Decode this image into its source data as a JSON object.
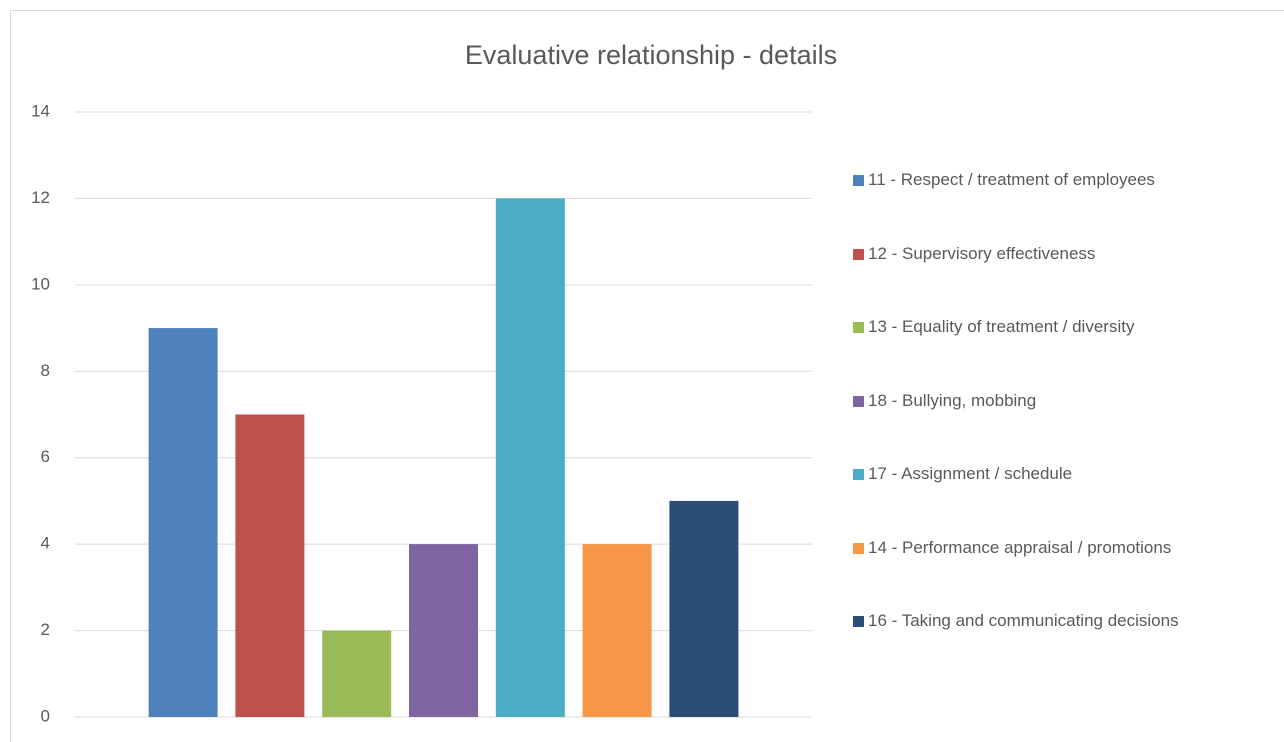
{
  "chart_data": {
    "type": "bar",
    "title": "Evaluative relationship - details",
    "series": [
      {
        "name": "11 - Respect / treatment of employees",
        "color": "#4f81bd",
        "values": [
          9
        ]
      },
      {
        "name": "12 - Supervisory effectiveness",
        "color": "#c0504d",
        "values": [
          7
        ]
      },
      {
        "name": "13 - Equality of treatment / diversity",
        "color": "#9bbb59",
        "values": [
          2
        ]
      },
      {
        "name": "18 - Bullying, mobbing",
        "color": "#8064a2",
        "values": [
          4
        ]
      },
      {
        "name": "17 - Assignment / schedule",
        "color": "#4bacc6",
        "values": [
          12
        ]
      },
      {
        "name": "14 - Performance appraisal / promotions",
        "color": "#f79646",
        "values": [
          4
        ]
      },
      {
        "name": "16 - Taking and communicating decisions",
        "color": "#2c4d75",
        "values": [
          5
        ]
      }
    ],
    "ylim": [
      0,
      14
    ],
    "yticks": [
      0,
      2,
      4,
      6,
      8,
      10,
      12,
      14
    ],
    "grid": true,
    "legend": "right"
  }
}
